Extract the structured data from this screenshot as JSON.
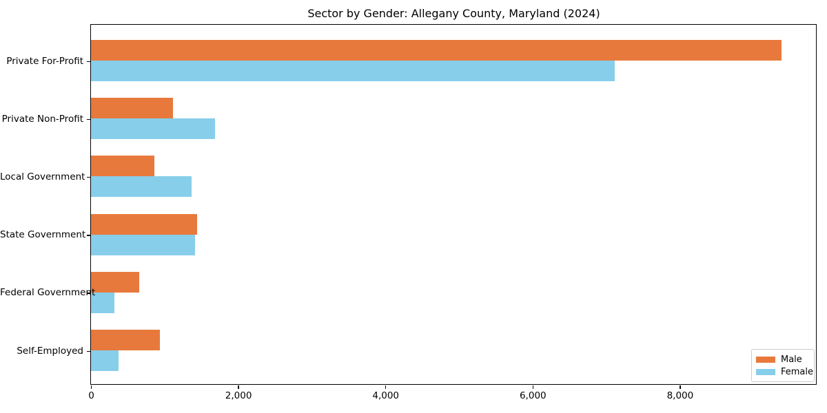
{
  "chart_data": {
    "type": "bar",
    "orientation": "horizontal",
    "title": "Sector by Gender: Allegany County, Maryland (2024)",
    "categories": [
      "Private For-Profit",
      "Private Non-Profit",
      "Local Government",
      "State Government",
      "Federal Government",
      "Self-Employed"
    ],
    "series": [
      {
        "name": "Male",
        "color": "#E8793C",
        "values": [
          9385,
          1110,
          860,
          1440,
          655,
          935
        ]
      },
      {
        "name": "Female",
        "color": "#87CEEB",
        "values": [
          7115,
          1690,
          1370,
          1410,
          320,
          375
        ]
      }
    ],
    "xlabel": "",
    "ylabel": "",
    "xlim": [
      0,
      9850
    ],
    "xticks": [
      0,
      2000,
      4000,
      6000,
      8000
    ],
    "xtick_labels": [
      "0",
      "2,000",
      "4,000",
      "6,000",
      "8,000"
    ],
    "grid": false,
    "legend_position": "lower right",
    "background": "#ffffff",
    "spine_color": "#000000"
  }
}
